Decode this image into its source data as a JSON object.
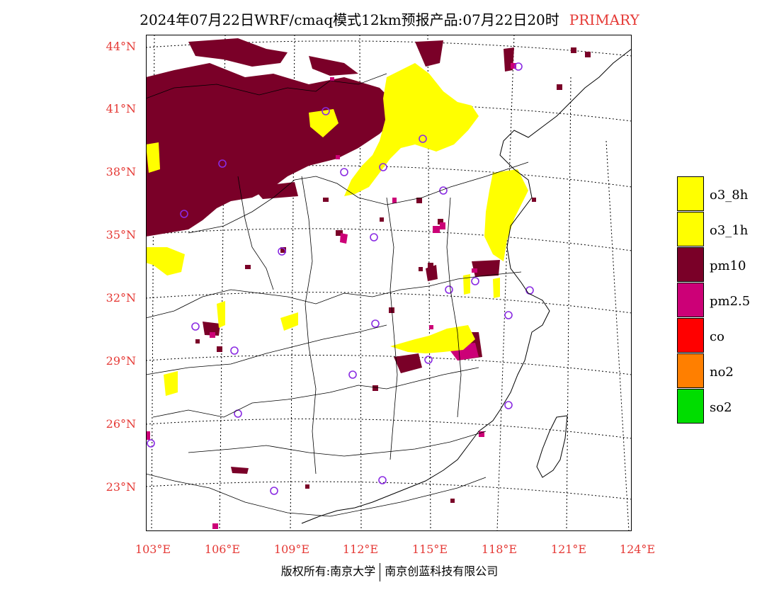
{
  "title": {
    "text": "2024年07月22日WRF/cmaq模式12km预报产品:07月22日20时",
    "tag": "PRIMARY",
    "tag_color": "#e53935"
  },
  "map": {
    "lat_labels": [
      "44°N",
      "41°N",
      "38°N",
      "35°N",
      "32°N",
      "29°N",
      "26°N",
      "23°N"
    ],
    "lon_labels": [
      "103°E",
      "106°E",
      "109°E",
      "112°E",
      "115°E",
      "118°E",
      "121°E",
      "124°E"
    ],
    "tick_color": "#e53935"
  },
  "legend": [
    {
      "label": "o3_8h",
      "color": "#ffff00"
    },
    {
      "label": "o3_1h",
      "color": "#ffff00"
    },
    {
      "label": "pm10",
      "color": "#7a0028"
    },
    {
      "label": "pm2.5",
      "color": "#cc0077"
    },
    {
      "label": "co",
      "color": "#ff0000"
    },
    {
      "label": "no2",
      "color": "#ff7f00"
    },
    {
      "label": "so2",
      "color": "#00dd00"
    }
  ],
  "footer": {
    "left": "版权所有:南京大学",
    "right": "南京创蓝科技有限公司"
  }
}
